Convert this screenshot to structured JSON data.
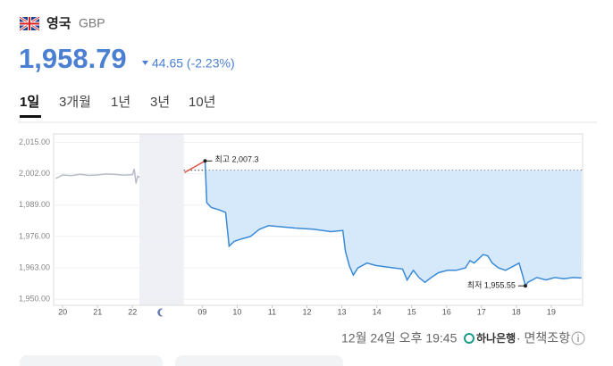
{
  "header": {
    "country": "영국",
    "currency": "GBP",
    "rate": "1,958.79",
    "change": "44.65 (-2.23%)"
  },
  "tabs": [
    "1일",
    "3개월",
    "1년",
    "3년",
    "10년"
  ],
  "active_tab": 0,
  "footer": {
    "time": "12월 24일 오후 19:45",
    "bank": "하나은행",
    "disclaimer": "· 면책조항"
  },
  "chart_data": {
    "type": "line",
    "xlim": [
      -0.26,
      14.9
    ],
    "ylim": [
      1947.5,
      2018.5
    ],
    "yticks": [
      {
        "value": 2015,
        "label": "2,015.00"
      },
      {
        "value": 2002,
        "label": "2,002.00"
      },
      {
        "value": 1989,
        "label": "1,989.00"
      },
      {
        "value": 1976,
        "label": "1,976.00"
      },
      {
        "value": 1963,
        "label": "1,963.00"
      },
      {
        "value": 1950,
        "label": "1,950.00"
      }
    ],
    "xticks": [
      {
        "value": 0,
        "label": "20"
      },
      {
        "value": 1,
        "label": "21"
      },
      {
        "value": 2,
        "label": "22"
      },
      {
        "value": 4,
        "label": "09"
      },
      {
        "value": 5,
        "label": "10"
      },
      {
        "value": 6,
        "label": "11"
      },
      {
        "value": 7,
        "label": "12"
      },
      {
        "value": 8,
        "label": "13"
      },
      {
        "value": 9,
        "label": "14"
      },
      {
        "value": 10,
        "label": "15"
      },
      {
        "value": 11,
        "label": "16"
      },
      {
        "value": 12,
        "label": "17"
      },
      {
        "value": 13,
        "label": "18"
      },
      {
        "value": 14,
        "label": "19"
      }
    ],
    "night_band": [
      2.2,
      3.47
    ],
    "reference_line": 2003.44,
    "grid": true,
    "series": [
      {
        "color": "#b8bcc8",
        "x": [
          -0.2,
          0,
          0.25,
          0.5,
          0.75,
          1,
          1.25,
          1.5,
          1.75,
          2.0,
          2.05,
          2.1,
          2.15,
          2.2
        ],
        "values": [
          2000,
          2001.5,
          2001.2,
          2001.8,
          2001.3,
          2001.5,
          2001.9,
          2001.7,
          2001.4,
          2001.6,
          2004,
          1998,
          2001,
          2000.5
        ]
      },
      {
        "color": "#e05a4f",
        "x": [
          3.49,
          4.08
        ],
        "values": [
          2002.5,
          2007.3
        ]
      },
      {
        "color": "#3a8ad6",
        "area": true,
        "x": [
          4.08,
          4.13,
          4.26,
          4.49,
          4.67,
          4.77,
          4.92,
          5.13,
          5.38,
          5.64,
          5.9,
          6.28,
          6.67,
          7.18,
          7.69,
          8.03,
          8.1,
          8.21,
          8.33,
          8.46,
          8.72,
          8.97,
          9.49,
          9.74,
          9.87,
          10.05,
          10.21,
          10.38,
          10.56,
          10.77,
          11.03,
          11.28,
          11.54,
          11.67,
          11.79,
          12.05,
          12.18,
          12.31,
          12.49,
          12.69,
          12.95,
          13.08,
          13.18,
          13.26,
          13.33,
          13.59,
          13.85,
          14.1,
          14.36,
          14.62,
          14.87
        ],
        "values": [
          2007.3,
          1990,
          1988,
          1987,
          1986,
          1972,
          1974,
          1975,
          1976,
          1979,
          1980.5,
          1980,
          1979.5,
          1979,
          1978,
          1978.5,
          1970,
          1964,
          1960,
          1963,
          1965,
          1964,
          1963,
          1962.5,
          1958,
          1962,
          1959,
          1957,
          1959,
          1961,
          1962,
          1962,
          1963,
          1966,
          1965,
          1968.5,
          1968,
          1965,
          1963,
          1962,
          1964,
          1965,
          1960,
          1955.55,
          1957,
          1959,
          1958,
          1959,
          1958.5,
          1959,
          1958.8
        ]
      }
    ],
    "annotations": [
      {
        "text": "최고 2,007.3",
        "x": 4.08,
        "y": 2007.3,
        "side": "right"
      },
      {
        "text": "최저 1,955.55",
        "x": 13.26,
        "y": 1955.55,
        "side": "left"
      }
    ]
  }
}
